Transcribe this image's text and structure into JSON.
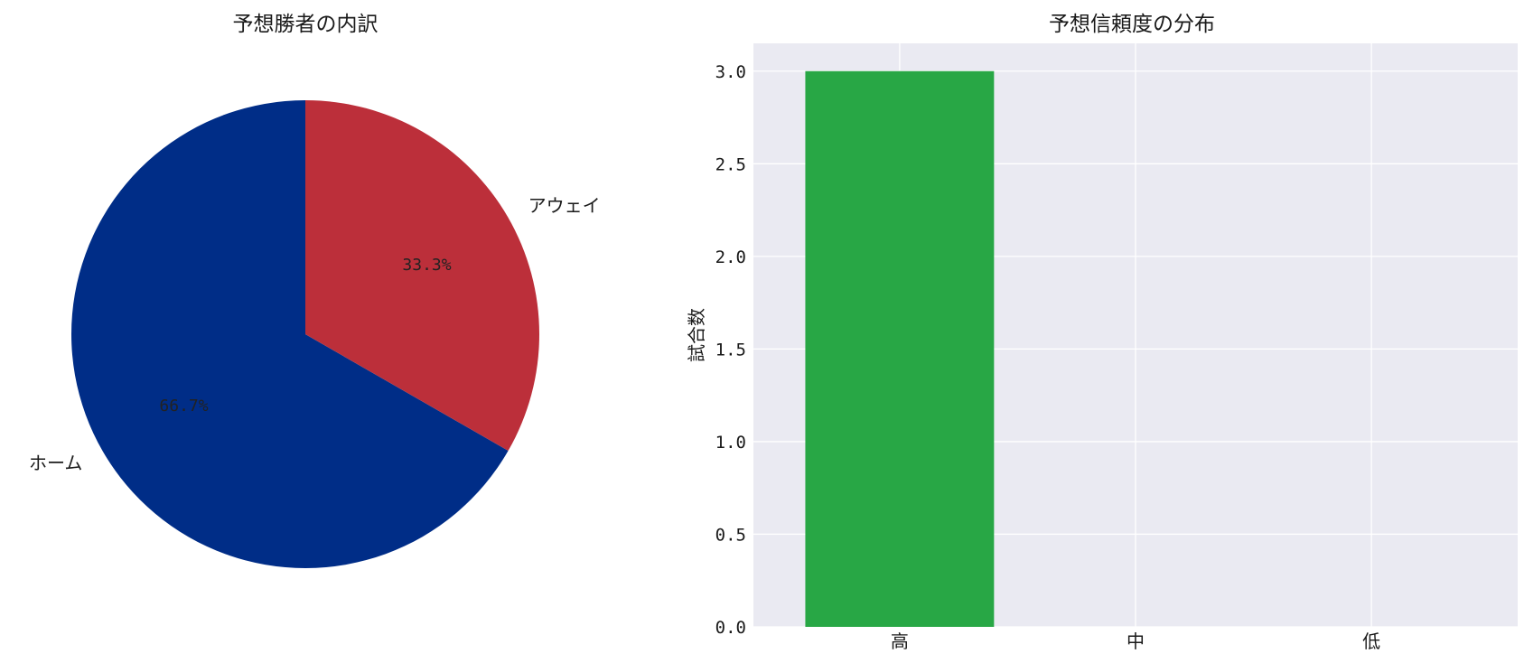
{
  "chart_data": [
    {
      "type": "pie",
      "title": "予想勝者の内訳",
      "labels": [
        "ホーム",
        "アウェイ"
      ],
      "values": [
        66.7,
        33.3
      ],
      "pct_labels": [
        "66.7%",
        "33.3%"
      ],
      "colors": [
        "#002d87",
        "#bc2f3a"
      ],
      "start_angle_deg": 90,
      "direction": "clockwise-from-top: アウェイ first"
    },
    {
      "type": "bar",
      "title": "予想信頼度の分布",
      "categories": [
        "高",
        "中",
        "低"
      ],
      "values": [
        3,
        0,
        0
      ],
      "xlabel": "",
      "ylabel": "試合数",
      "ylim": [
        0,
        3.15
      ],
      "yticks": [
        "0.0",
        "0.5",
        "1.0",
        "1.5",
        "2.0",
        "2.5",
        "3.0"
      ],
      "bar_color": "#28a745",
      "background": "#eaeaf2",
      "grid": true
    }
  ]
}
